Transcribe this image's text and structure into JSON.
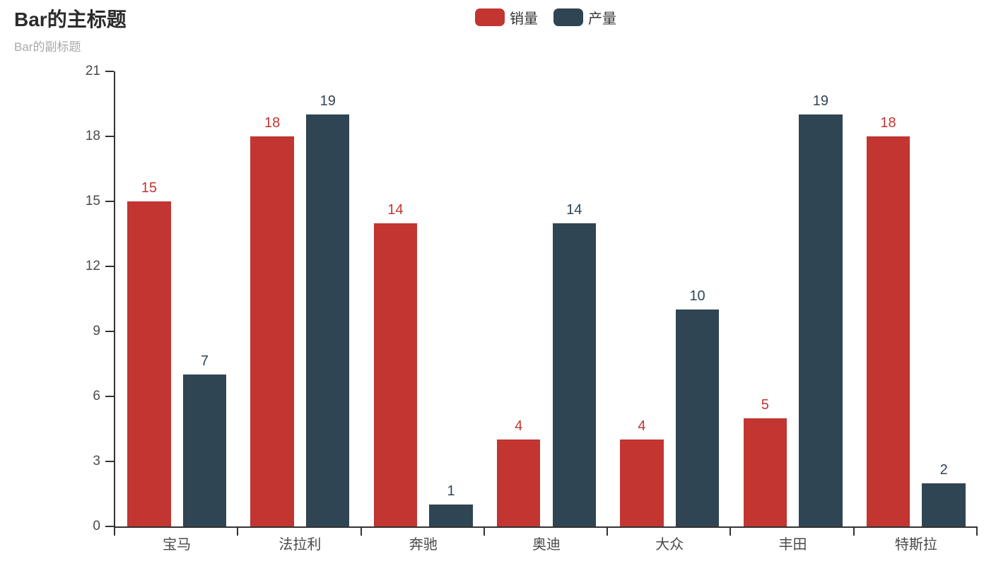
{
  "title": {
    "main": "Bar的主标题",
    "sub": "Bar的副标题"
  },
  "legend": {
    "items": [
      {
        "label": "销量",
        "color": "#c23531"
      },
      {
        "label": "产量",
        "color": "#2f4554"
      }
    ]
  },
  "colors": {
    "sales": "#c23531",
    "production": "#2f4554",
    "axis_line": "#333333",
    "axis_label": "#4a4a4a",
    "title": "#2b2b2b",
    "subtitle": "#a9a9a9"
  },
  "chart_data": {
    "type": "bar",
    "title": "Bar的主标题",
    "subtitle": "Bar的副标题",
    "categories": [
      "宝马",
      "法拉利",
      "奔驰",
      "奥迪",
      "大众",
      "丰田",
      "特斯拉"
    ],
    "series": [
      {
        "name": "销量",
        "color": "#c23531",
        "values": [
          15,
          18,
          14,
          4,
          4,
          5,
          18
        ]
      },
      {
        "name": "产量",
        "color": "#2f4554",
        "values": [
          7,
          19,
          1,
          14,
          10,
          19,
          2
        ]
      }
    ],
    "ylim": [
      0,
      21
    ],
    "yticks": [
      0,
      3,
      6,
      9,
      12,
      15,
      18,
      21
    ],
    "grid_lines": false,
    "bar_labels": true,
    "legend_position": "top-center"
  }
}
